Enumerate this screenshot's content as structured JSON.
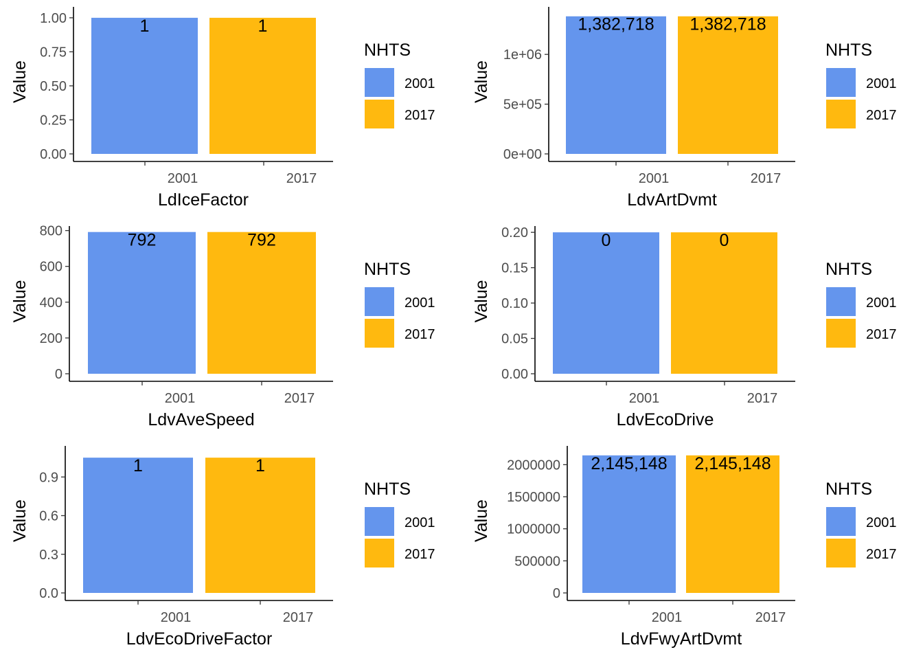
{
  "chart_data": [
    {
      "type": "bar",
      "categories": [
        "2001",
        "2017"
      ],
      "values": [
        1,
        1
      ],
      "data_labels": [
        "1",
        "1"
      ],
      "xlabel": "LdIceFactor",
      "ylabel": "Value",
      "ylim": [
        0,
        1.06
      ],
      "yticks": [
        0,
        0.25,
        0.5,
        0.75,
        1
      ],
      "ytick_labels": [
        "0.00",
        "0.25",
        "0.50",
        "0.75",
        "1.00"
      ],
      "legend": {
        "title": "NHTS",
        "entries": [
          "2001",
          "2017"
        ],
        "placement": "right"
      },
      "colors": [
        "#6495ED",
        "#FFB90F"
      ]
    },
    {
      "type": "bar",
      "categories": [
        "2001",
        "2017"
      ],
      "values": [
        1382718,
        1382718
      ],
      "data_labels": [
        "1,382,718",
        "1,382,718"
      ],
      "xlabel": "LdvArtDvmt",
      "ylabel": "Value",
      "ylim": [
        0,
        1450000
      ],
      "yticks": [
        0,
        500000,
        1000000
      ],
      "ytick_labels": [
        "0e+00",
        "5e+05",
        "1e+06"
      ],
      "legend": {
        "title": "NHTS",
        "entries": [
          "2001",
          "2017"
        ],
        "placement": "right"
      },
      "colors": [
        "#6495ED",
        "#FFB90F"
      ]
    },
    {
      "type": "bar",
      "categories": [
        "2001",
        "2017"
      ],
      "values": [
        792,
        792
      ],
      "data_labels": [
        "792",
        "792"
      ],
      "xlabel": "LdvAveSpeed",
      "ylabel": "Value",
      "ylim": [
        0,
        810
      ],
      "yticks": [
        0,
        200,
        400,
        600,
        800
      ],
      "ytick_labels": [
        "0",
        "200",
        "400",
        "600",
        "800"
      ],
      "legend": {
        "title": "NHTS",
        "entries": [
          "2001",
          "2017"
        ],
        "placement": "right"
      },
      "colors": [
        "#6495ED",
        "#FFB90F"
      ]
    },
    {
      "type": "bar",
      "categories": [
        "2001",
        "2017"
      ],
      "values": [
        0.2,
        0.2
      ],
      "data_labels": [
        "0",
        "0"
      ],
      "xlabel": "LdvEcoDrive",
      "ylabel": "Value",
      "ylim": [
        0,
        0.205
      ],
      "yticks": [
        0,
        0.05,
        0.1,
        0.15,
        0.2
      ],
      "ytick_labels": [
        "0.00",
        "0.05",
        "0.10",
        "0.15",
        "0.20"
      ],
      "legend": {
        "title": "NHTS",
        "entries": [
          "2001",
          "2017"
        ],
        "placement": "right"
      },
      "colors": [
        "#6495ED",
        "#FFB90F"
      ]
    },
    {
      "type": "bar",
      "categories": [
        "2001",
        "2017"
      ],
      "values": [
        1.05,
        1.05
      ],
      "data_labels": [
        "1",
        "1"
      ],
      "xlabel": "LdvEcoDriveFactor",
      "ylabel": "Value",
      "ylim": [
        0,
        1.12
      ],
      "yticks": [
        0,
        0.3,
        0.6,
        0.9
      ],
      "ytick_labels": [
        "0.0",
        "0.3",
        "0.6",
        "0.9"
      ],
      "legend": {
        "title": "NHTS",
        "entries": [
          "2001",
          "2017"
        ],
        "placement": "right"
      },
      "colors": [
        "#6495ED",
        "#FFB90F"
      ]
    },
    {
      "type": "bar",
      "categories": [
        "2001",
        "2017"
      ],
      "values": [
        2145148,
        2145148
      ],
      "data_labels": [
        "2,145,148",
        "2,145,148"
      ],
      "xlabel": "LdvFwyArtDvmt",
      "ylabel": "Value",
      "ylim": [
        0,
        2250000
      ],
      "yticks": [
        0,
        500000,
        1000000,
        1500000,
        2000000
      ],
      "ytick_labels": [
        "0",
        "500000",
        "1000000",
        "1500000",
        "2000000"
      ],
      "legend": {
        "title": "NHTS",
        "entries": [
          "2001",
          "2017"
        ],
        "placement": "right"
      },
      "colors": [
        "#6495ED",
        "#FFB90F"
      ]
    }
  ]
}
